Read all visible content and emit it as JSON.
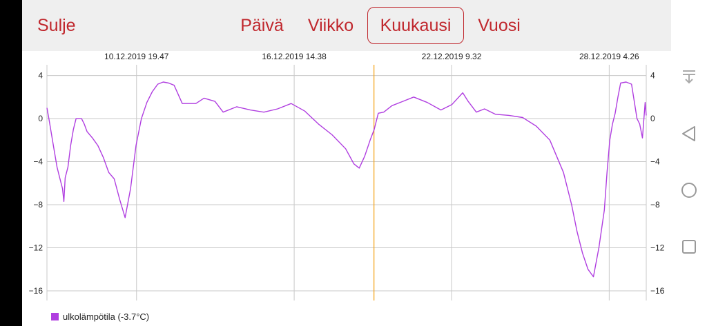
{
  "toolbar": {
    "close_label": "Sulje",
    "day_label": "Päivä",
    "week_label": "Viikko",
    "month_label": "Kuukausi",
    "year_label": "Vuosi",
    "selected": "Kuukausi"
  },
  "colors": {
    "accent": "#c0272d",
    "series": "#b03ee0",
    "cursor": "#f5a623",
    "grid": "#c8c8c8"
  },
  "navbar_icons": [
    "download-icon",
    "back-icon",
    "home-icon",
    "recents-icon"
  ],
  "chart_data": {
    "type": "line",
    "title": "",
    "xlabel": "",
    "ylabel": "",
    "x_tick_labels": [
      "10.12.2019 19.47",
      "16.12.2019 14.38",
      "22.12.2019 9.32",
      "28.12.2019 4.26"
    ],
    "x_tick_days": [
      10.82,
      16.61,
      22.39,
      28.18
    ],
    "xlim_days": [
      7.53,
      29.54
    ],
    "ylim": [
      -16.9,
      5
    ],
    "y_ticks": [
      4,
      0,
      -4,
      -8,
      -12,
      -16
    ],
    "y_tick_labels": [
      "4",
      "0",
      "−4",
      "−8",
      "−12",
      "−16"
    ],
    "grid": true,
    "legend": "bottom-left",
    "cursor_day": 19.54,
    "series": [
      {
        "name": "ulkolämpötila (-3.7°C)",
        "x_days": [
          7.53,
          7.6,
          7.7,
          7.8,
          7.9,
          8.0,
          8.1,
          8.15,
          8.2,
          8.3,
          8.4,
          8.5,
          8.6,
          8.7,
          8.8,
          8.9,
          9.0,
          9.2,
          9.4,
          9.6,
          9.8,
          10.0,
          10.2,
          10.4,
          10.6,
          10.8,
          11.0,
          11.2,
          11.4,
          11.6,
          11.8,
          12.0,
          12.2,
          12.5,
          13.0,
          13.3,
          13.7,
          14.0,
          14.5,
          15.0,
          15.5,
          16.0,
          16.5,
          17.0,
          17.5,
          18.0,
          18.5,
          18.8,
          19.0,
          19.2,
          19.4,
          19.55,
          19.7,
          19.9,
          20.2,
          20.6,
          21.0,
          21.5,
          22.0,
          22.4,
          22.8,
          23.0,
          23.3,
          23.6,
          24.0,
          24.5,
          25.0,
          25.5,
          26.0,
          26.5,
          26.8,
          27.0,
          27.2,
          27.4,
          27.6,
          27.8,
          28.0,
          28.1,
          28.2,
          28.3,
          28.4,
          28.5,
          28.6,
          28.8,
          29.0,
          29.2,
          29.3,
          29.4,
          29.5,
          29.54
        ],
        "y": [
          1.0,
          0.0,
          -1.5,
          -3.0,
          -4.5,
          -5.5,
          -6.5,
          -7.7,
          -5.5,
          -4.5,
          -2.5,
          -1.0,
          0.0,
          0.0,
          0.0,
          -0.5,
          -1.2,
          -1.8,
          -2.5,
          -3.6,
          -5.0,
          -5.6,
          -7.5,
          -9.2,
          -6.5,
          -2.5,
          0.0,
          1.5,
          2.5,
          3.2,
          3.4,
          3.3,
          3.1,
          1.4,
          1.4,
          1.9,
          1.6,
          0.6,
          1.1,
          0.8,
          0.6,
          0.9,
          1.4,
          0.7,
          -0.5,
          -1.5,
          -2.8,
          -4.2,
          -4.6,
          -3.5,
          -2.0,
          -1.0,
          0.5,
          0.6,
          1.2,
          1.6,
          2.0,
          1.5,
          0.8,
          1.3,
          2.4,
          1.6,
          0.6,
          0.9,
          0.4,
          0.3,
          0.1,
          -0.7,
          -2.0,
          -5.0,
          -8.0,
          -10.5,
          -12.5,
          -14.0,
          -14.7,
          -12.0,
          -8.5,
          -5.0,
          -2.0,
          -0.5,
          0.5,
          2.0,
          3.3,
          3.4,
          3.2,
          0.0,
          -0.5,
          -1.8,
          1.5,
          0.3
        ]
      }
    ]
  }
}
